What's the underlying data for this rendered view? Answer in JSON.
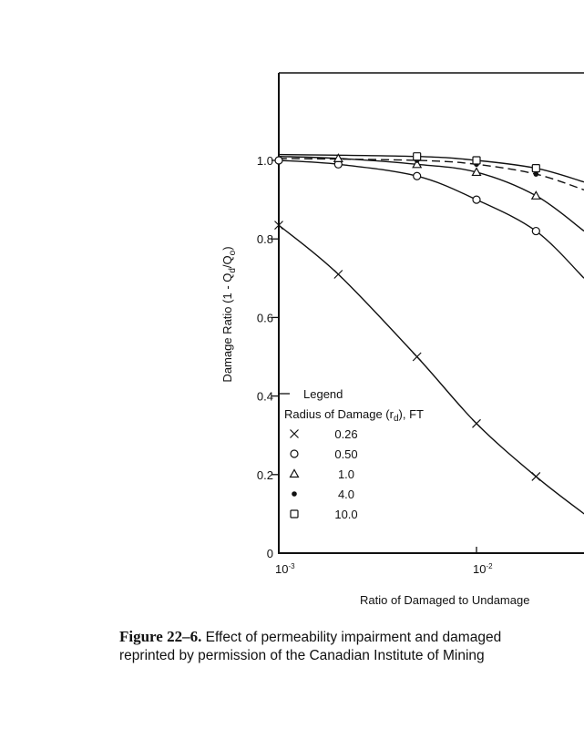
{
  "chart_data": {
    "type": "line",
    "xscale": "log",
    "xlim": [
      0.001,
      0.035
    ],
    "ylim": [
      0,
      1.0
    ],
    "xlabel": "Ratio of Damaged to Undamage",
    "ylabel_parts": [
      "Damage Ratio (1 - Q",
      "d",
      "/Q",
      "o",
      ")"
    ],
    "x_ticks": [
      {
        "value": 0.001,
        "base": "10",
        "exp": "-3"
      },
      {
        "value": 0.01,
        "base": "10",
        "exp": "-2"
      }
    ],
    "y_ticks": [
      {
        "value": 0,
        "label": "0"
      },
      {
        "value": 0.2,
        "label": "0.2"
      },
      {
        "value": 0.4,
        "label": "0.4"
      },
      {
        "value": 0.6,
        "label": "0.6"
      },
      {
        "value": 0.8,
        "label": "0.8"
      },
      {
        "value": 1.0,
        "label": "1.0"
      }
    ],
    "legend": {
      "title": "Legend",
      "subtitle_parts": [
        "Radius of Damage (r",
        "d",
        "), FT"
      ],
      "placement": "lower-left"
    },
    "series": [
      {
        "name": "0.26",
        "marker": "x",
        "dash": false,
        "points": [
          [
            0.001,
            0.835
          ],
          [
            0.002,
            0.71
          ],
          [
            0.005,
            0.5
          ],
          [
            0.01,
            0.33
          ],
          [
            0.02,
            0.195
          ]
        ],
        "curve_end": [
          0.035,
          0.1
        ]
      },
      {
        "name": "0.50",
        "marker": "circle",
        "dash": false,
        "points": [
          [
            0.001,
            1.0
          ],
          [
            0.002,
            0.99
          ],
          [
            0.005,
            0.96
          ],
          [
            0.01,
            0.9
          ],
          [
            0.02,
            0.82
          ]
        ],
        "curve_end": [
          0.035,
          0.7
        ]
      },
      {
        "name": "1.0",
        "marker": "triangle",
        "dash": false,
        "points": [
          [
            0.002,
            1.005
          ],
          [
            0.005,
            0.99
          ],
          [
            0.01,
            0.97
          ],
          [
            0.02,
            0.91
          ]
        ],
        "curve_end": [
          0.035,
          0.82
        ]
      },
      {
        "name": "4.0",
        "marker": "dot",
        "dash": true,
        "points": [
          [
            0.005,
            1.0
          ],
          [
            0.01,
            0.99
          ],
          [
            0.02,
            0.965
          ]
        ],
        "curve_end": [
          0.035,
          0.925
        ]
      },
      {
        "name": "10.0",
        "marker": "square",
        "dash": false,
        "points": [
          [
            0.005,
            1.01
          ],
          [
            0.01,
            1.0
          ],
          [
            0.02,
            0.98
          ]
        ],
        "curve_end": [
          0.035,
          0.945
        ]
      }
    ]
  },
  "caption": {
    "figure_label": "Figure 22–6.",
    "line1": " Effect of permeability impairment and damaged",
    "line2": "reprinted by permission of the Canadian Institute of Mining"
  }
}
